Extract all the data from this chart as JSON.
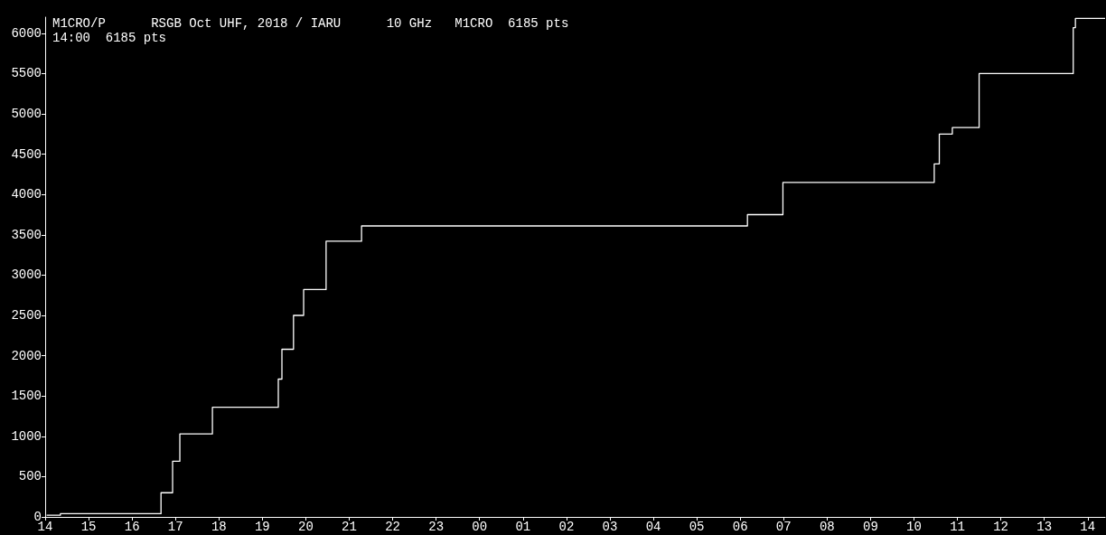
{
  "chart_data": {
    "type": "step",
    "title": "M1CRO/P      RSGB Oct UHF, 2018 / IARU      10 GHz   M1CRO  6185 pts",
    "subtitle": "14:00  6185 pts",
    "x": [
      "2018-10-06T14:02",
      "2018-10-06T14:21",
      "2018-10-06T16:40",
      "2018-10-06T16:56",
      "2018-10-06T17:06",
      "2018-10-06T17:51",
      "2018-10-06T19:22",
      "2018-10-06T19:27",
      "2018-10-06T19:43",
      "2018-10-06T19:57",
      "2018-10-06T20:28",
      "2018-10-06T21:17",
      "2018-10-07T06:10",
      "2018-10-07T06:59",
      "2018-10-07T10:28",
      "2018-10-07T10:35",
      "2018-10-07T10:53",
      "2018-10-07T11:30",
      "2018-10-07T13:40",
      "2018-10-07T13:43",
      "2018-10-07T14:24"
    ],
    "series": [
      {
        "color": "#ffffff",
        "values": [
          20,
          40,
          300,
          690,
          1030,
          1360,
          1710,
          2080,
          2500,
          2820,
          3420,
          3610,
          3750,
          4150,
          4380,
          4750,
          4830,
          5500,
          6070,
          6185,
          6185
        ]
      }
    ],
    "xlim": [
      "2018-10-06T14:00",
      "2018-10-07T14:24"
    ],
    "ylim": [
      0,
      6200
    ],
    "xticks": [
      {
        "value": "2018-10-06T14:00",
        "label": "14"
      },
      {
        "value": "2018-10-06T15:00",
        "label": "15"
      },
      {
        "value": "2018-10-06T16:00",
        "label": "16"
      },
      {
        "value": "2018-10-06T17:00",
        "label": "17"
      },
      {
        "value": "2018-10-06T18:00",
        "label": "18"
      },
      {
        "value": "2018-10-06T19:00",
        "label": "19"
      },
      {
        "value": "2018-10-06T20:00",
        "label": "20"
      },
      {
        "value": "2018-10-06T21:00",
        "label": "21"
      },
      {
        "value": "2018-10-06T22:00",
        "label": "22"
      },
      {
        "value": "2018-10-06T23:00",
        "label": "23"
      },
      {
        "value": "2018-10-07T00:00",
        "label": "00"
      },
      {
        "value": "2018-10-07T01:00",
        "label": "01"
      },
      {
        "value": "2018-10-07T02:00",
        "label": "02"
      },
      {
        "value": "2018-10-07T03:00",
        "label": "03"
      },
      {
        "value": "2018-10-07T04:00",
        "label": "04"
      },
      {
        "value": "2018-10-07T05:00",
        "label": "05"
      },
      {
        "value": "2018-10-07T06:00",
        "label": "06"
      },
      {
        "value": "2018-10-07T07:00",
        "label": "07"
      },
      {
        "value": "2018-10-07T08:00",
        "label": "08"
      },
      {
        "value": "2018-10-07T09:00",
        "label": "09"
      },
      {
        "value": "2018-10-07T10:00",
        "label": "10"
      },
      {
        "value": "2018-10-07T11:00",
        "label": "11"
      },
      {
        "value": "2018-10-07T12:00",
        "label": "12"
      },
      {
        "value": "2018-10-07T13:00",
        "label": "13"
      },
      {
        "value": "2018-10-07T14:00",
        "label": "14"
      }
    ],
    "yticks": [
      0,
      500,
      1000,
      1500,
      2000,
      2500,
      3000,
      3500,
      4000,
      4500,
      5000,
      5500,
      6000
    ],
    "grid": false,
    "marker": "none",
    "line_style": "solid"
  }
}
